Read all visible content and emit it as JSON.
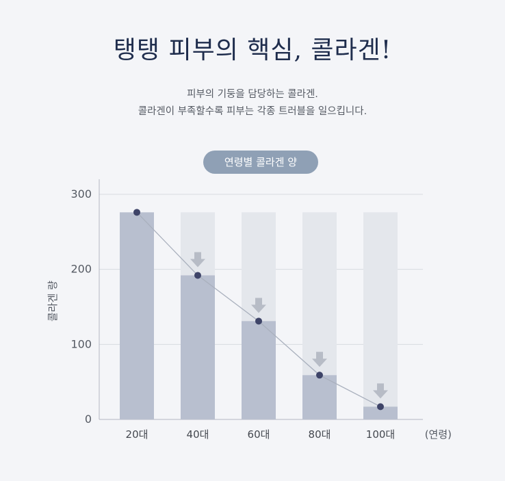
{
  "headline": "탱탱 피부의 핵심, 콜라겐!",
  "description": {
    "line1": "피부의 기둥을 담당하는 콜라겐.",
    "line2": "콜라겐이 부족할수록 피부는 각종 트러블을 일으킵니다."
  },
  "chart_data": {
    "type": "bar",
    "title": "연령별 콜라겐 양",
    "ylabel": "콜라겐 량",
    "xlabel": "(연령)",
    "categories": [
      "20대",
      "40대",
      "60대",
      "80대",
      "100대"
    ],
    "values": [
      276,
      192,
      131,
      59,
      17
    ],
    "reference_value": 276,
    "ylim": [
      0,
      300
    ],
    "yticks": [
      0,
      100,
      200,
      300
    ],
    "grid": true,
    "line_overlay": true,
    "decline_arrows": true,
    "colors": {
      "bar": "#b8bfcf",
      "bar_background": "#e4e7ec",
      "line": "#a9b0bd",
      "marker": "#3e4468",
      "arrow": "#b7bcc6",
      "grid": "#d7dae0",
      "axis": "#b3b8c2"
    }
  }
}
